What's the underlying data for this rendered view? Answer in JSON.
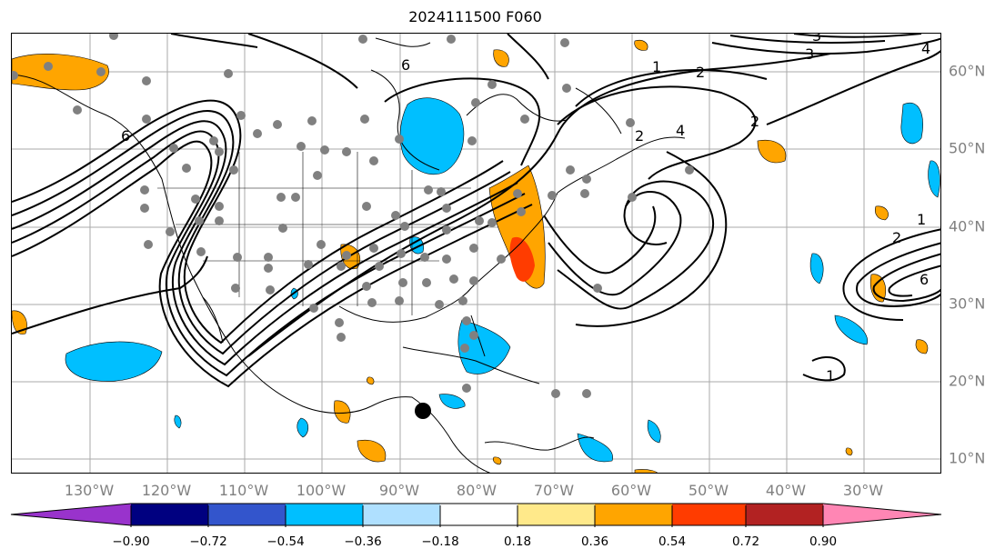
{
  "title": "2024111500 F060",
  "latitude_labels": [
    "60°N",
    "50°N",
    "40°N",
    "30°N",
    "20°N",
    "10°N"
  ],
  "longitude_labels": [
    "130°W",
    "120°W",
    "110°W",
    "100°W",
    "90°W",
    "80°W",
    "70°W",
    "60°W",
    "50°W",
    "40°W",
    "30°W"
  ],
  "contour_labels": [
    "6",
    "1",
    "2",
    "2",
    "4",
    "2",
    "3",
    "4",
    "3",
    "6",
    "1",
    "2",
    "6",
    "1"
  ],
  "colorbar": {
    "tick_labels": [
      "−0.90",
      "−0.72",
      "−0.54",
      "−0.36",
      "−0.18",
      "0.18",
      "0.36",
      "0.54",
      "0.72",
      "0.90"
    ],
    "colors": [
      "#9933cc",
      "#000080",
      "#3355cc",
      "#00bfff",
      "#afe0ff",
      "#ffffff",
      "#ffe98a",
      "#ffa500",
      "#ff3c00",
      "#b22222",
      "#ff86b4"
    ]
  },
  "colors": {
    "positive_fill": "#ffa500",
    "strong_positive_fill": "#ff3c00",
    "negative_fill": "#00bfff",
    "station_marker": "#808080",
    "contour": "#000000",
    "coastline": "#000000",
    "gridline": "#aaaaaa"
  }
}
